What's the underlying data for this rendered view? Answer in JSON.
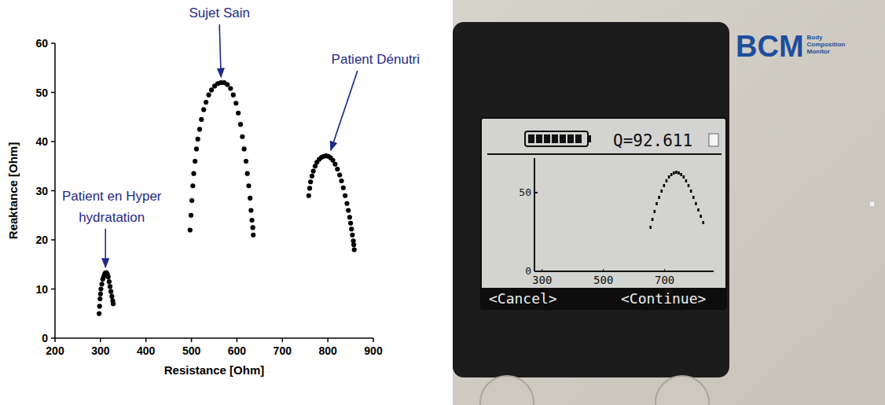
{
  "chart_data": [
    {
      "type": "scatter",
      "x_label": "Resistance [Ohm]",
      "y_label": "Reaktance [Ohm]",
      "xlim": [
        200,
        900
      ],
      "ylim": [
        0,
        60
      ],
      "xticks": [
        200,
        300,
        400,
        500,
        600,
        700,
        800,
        900
      ],
      "yticks": [
        0,
        10,
        20,
        30,
        40,
        50,
        60
      ],
      "grid": false,
      "series": [
        {
          "color": "#000000",
          "marker": "circle",
          "x": [
            297,
            298,
            299,
            300,
            301,
            303,
            305,
            307,
            309,
            311,
            313,
            315,
            317,
            319,
            321,
            323,
            325,
            327,
            328
          ],
          "values": [
            5,
            6.5,
            8,
            9,
            10,
            11,
            12,
            12.5,
            13,
            13.3,
            13.3,
            13,
            12.5,
            11.5,
            10.5,
            9.5,
            8.5,
            7.6,
            7
          ]
        },
        {
          "color": "#000000",
          "marker": "circle",
          "x": [
            497,
            499,
            501,
            503,
            505,
            508,
            511,
            514,
            518,
            522,
            527,
            532,
            538,
            544,
            551,
            558,
            565,
            572,
            579,
            586,
            592,
            598,
            603,
            608,
            612,
            616,
            620,
            623,
            626,
            629,
            631,
            633,
            635,
            636
          ],
          "values": [
            22,
            25,
            28,
            31,
            33.5,
            36,
            38.5,
            40.5,
            42.5,
            44.5,
            46.5,
            48,
            49.5,
            50.5,
            51.3,
            51.8,
            52,
            52,
            51.6,
            50.8,
            49.5,
            47.8,
            45.8,
            43.5,
            41,
            38.5,
            36,
            33.5,
            31,
            28.5,
            26,
            24,
            22.5,
            21
          ]
        },
        {
          "color": "#000000",
          "marker": "circle",
          "x": [
            758,
            760,
            762,
            765,
            768,
            772,
            776,
            781,
            786,
            791,
            796,
            801,
            806,
            811,
            816,
            821,
            826,
            830,
            834,
            838,
            842,
            845,
            848,
            850,
            852,
            854,
            856,
            857,
            858
          ],
          "values": [
            29,
            30.5,
            31.8,
            33,
            34,
            35,
            35.8,
            36.4,
            36.8,
            37,
            37.1,
            37,
            36.7,
            36.2,
            35.4,
            34.4,
            33.2,
            32,
            30.6,
            29,
            27.4,
            26,
            24.6,
            23.4,
            22.2,
            21,
            19.8,
            19,
            18
          ]
        }
      ],
      "annotations": [
        "Patient en Hyper hydratation",
        "Sujet Sain",
        "Patient Dénutri"
      ]
    },
    {
      "type": "scatter",
      "xlim": [
        275,
        860
      ],
      "ylim": [
        0,
        72
      ],
      "xticks": [
        300,
        500,
        700
      ],
      "yticks": [
        0,
        50
      ],
      "grid": false,
      "series": [
        {
          "color": "#000000",
          "marker": "dash",
          "x": [
            654,
            660,
            667,
            674,
            682,
            690,
            698,
            706,
            714,
            722,
            730,
            738,
            746,
            754,
            762,
            770,
            778,
            786,
            794,
            802,
            810,
            818,
            826
          ],
          "values": [
            28,
            33,
            38,
            43,
            47,
            51,
            54.5,
            57.5,
            60,
            61.5,
            62.5,
            63,
            62.5,
            61.5,
            60,
            57.5,
            54.5,
            51,
            47,
            43,
            39,
            35,
            31
          ]
        }
      ]
    }
  ],
  "device": {
    "brand": "BCM",
    "brand_subtitle": "Body Composition Monitor",
    "quality": "Q=92.611",
    "buttons": [
      "<Cancel>",
      "<Continue>"
    ]
  }
}
